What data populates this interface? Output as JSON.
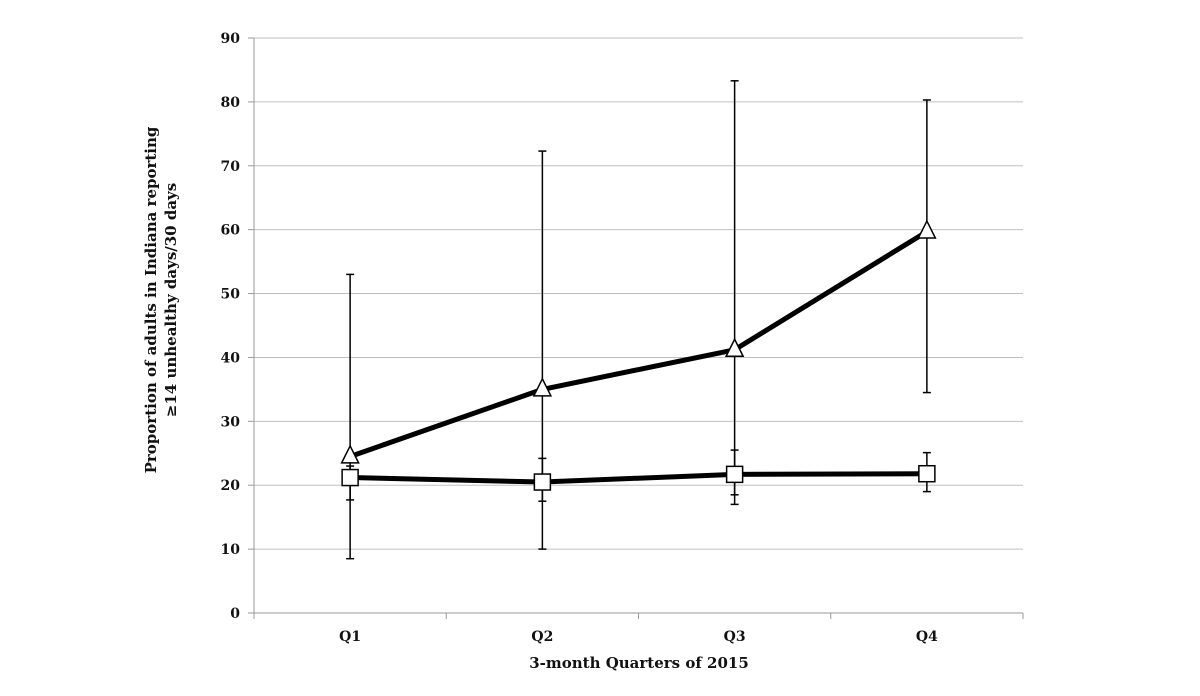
{
  "chart_data": {
    "type": "line",
    "title": "",
    "xlabel": "3-month Quarters of 2015",
    "ylabel_line1": "Proportion of adults in Indiana reporting",
    "ylabel_line2": "≥14 unhealthy days/30 days",
    "categories": [
      "Q1",
      "Q2",
      "Q3",
      "Q4"
    ],
    "ylim": [
      0,
      90
    ],
    "yticks": [
      0,
      10,
      20,
      30,
      40,
      50,
      60,
      70,
      80,
      90
    ],
    "grid": true,
    "legend": "none",
    "series": [
      {
        "marker": "triangle",
        "values": [
          24.5,
          35,
          41.2,
          59.7
        ],
        "error_low": [
          17.7,
          17.5,
          18.5,
          34.5
        ],
        "error_high": [
          53,
          72.3,
          83.3,
          80.3
        ]
      },
      {
        "marker": "square",
        "values": [
          21.2,
          20.5,
          21.7,
          21.8
        ],
        "error_low": [
          8.5,
          10,
          17,
          19
        ],
        "error_high": [
          23,
          24.2,
          25.5,
          25.1
        ]
      }
    ],
    "colors": {
      "line": "#000000",
      "grid": "#c0c0c0",
      "marker_fill": "#ffffff"
    }
  }
}
